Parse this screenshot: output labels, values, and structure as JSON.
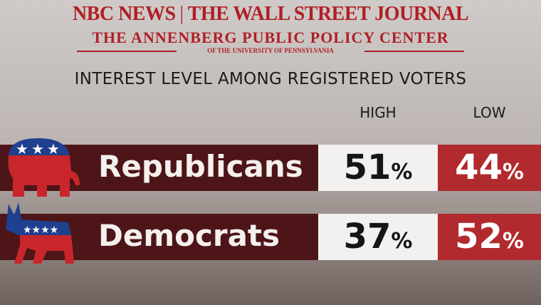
{
  "header": {
    "network": "NBC NEWS",
    "partner": "THE WALL STREET JOURNAL",
    "center": "THE ANNENBERG PUBLIC POLICY CENTER",
    "university": "OF THE UNIVERSITY OF PENNSYLVANIA"
  },
  "title": "INTEREST LEVEL AMONG REGISTERED VOTERS",
  "table": {
    "columns": [
      "HIGH",
      "LOW"
    ],
    "rows": [
      [
        "Republicans",
        "51%",
        "44%"
      ],
      [
        "Democrats",
        "37%",
        "52%"
      ]
    ]
  }
}
